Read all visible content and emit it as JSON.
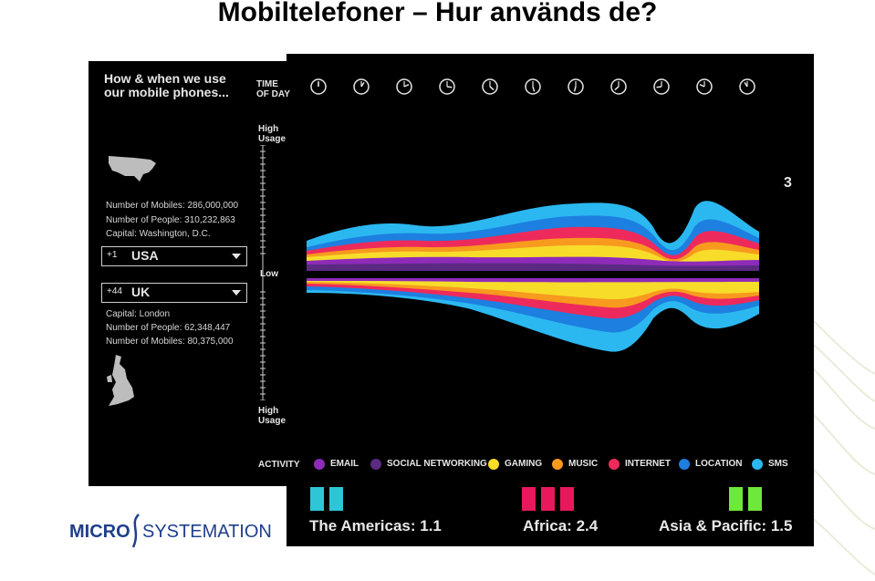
{
  "slide": {
    "title": "Mobiltelefoner – Hur används de?"
  },
  "left_panel": {
    "heading_line1": "How & when we use",
    "heading_line2": "our mobile phones...",
    "usa": {
      "mobiles": "Number of Mobiles: 286,000,000",
      "people": "Number of People: 310,232,863",
      "capital": "Capital: Washington, D.C.",
      "code": "+1",
      "country": "USA"
    },
    "uk": {
      "code": "+44",
      "country": "UK",
      "capital": "Capital: London",
      "people": "Number of People: 62,348,447",
      "mobiles": "Number of Mobiles: 80,375,000"
    }
  },
  "main_panel": {
    "time_label_1": "TIME",
    "time_label_2": "OF DAY",
    "high_usage_top_1": "High",
    "high_usage_top_2": "Usage",
    "low_label": "Low",
    "high_usage_bottom_1": "High",
    "high_usage_bottom_2": "Usage",
    "activity_label": "ACTIVITY",
    "clock_count": 11,
    "legend": [
      {
        "label": "EMAIL",
        "color": "#8e2bb8"
      },
      {
        "label": "SOCIAL NETWORKING",
        "color": "#5b2a82"
      },
      {
        "label": "GAMING",
        "color": "#f7dc2a"
      },
      {
        "label": "MUSIC",
        "color": "#f79a1e"
      },
      {
        "label": "INTERNET",
        "color": "#ee2a5c"
      },
      {
        "label": "LOCATION",
        "color": "#1d7fe0"
      },
      {
        "label": "SMS",
        "color": "#2bb8f0"
      }
    ],
    "regions": [
      {
        "label": "The Americas: 1.1",
        "color": "#2ec6d6"
      },
      {
        "label": "Africa: 2.4",
        "color": "#e8185c"
      },
      {
        "label": "Asia & Pacific: 1.5",
        "color": "#6ee83a"
      }
    ],
    "side_glyph": "3"
  },
  "brand": {
    "micro": "MICRO",
    "systemation": "SYSTEMATION"
  }
}
